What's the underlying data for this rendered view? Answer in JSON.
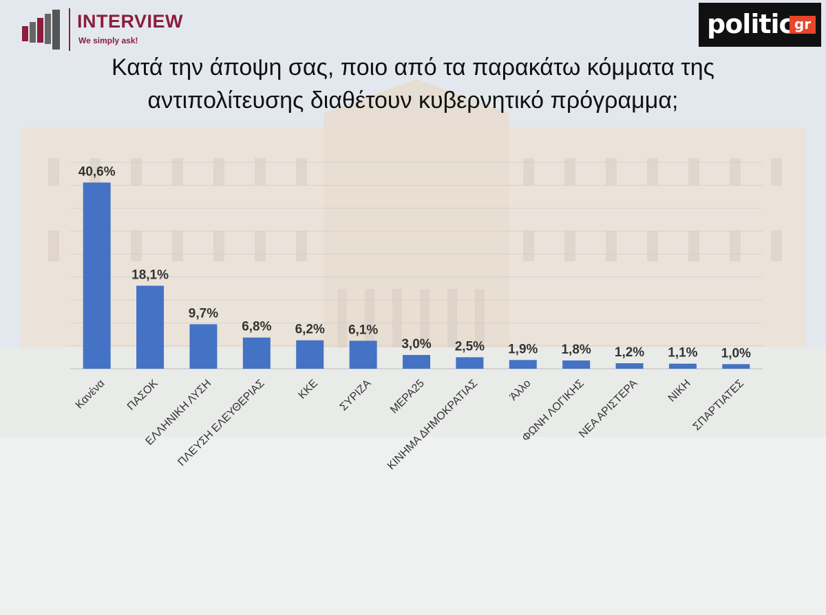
{
  "branding": {
    "left_logo": {
      "name": "INTERVIEW",
      "tagline": "We simply ask!"
    },
    "right_logo": {
      "name": "politic",
      "suffix": "gr"
    }
  },
  "title_lines": [
    "Κατά την άποψη σας, ποιο από τα παρακάτω κόμματα της",
    "αντιπολίτευσης διαθέτουν κυβερνητικό πρόγραμμα;"
  ],
  "chart_data": {
    "type": "bar",
    "title": "Κατά την άποψη σας, ποιο από τα παρακάτω κόμματα της αντιπολίτευσης διαθέτουν κυβερνητικό πρόγραμμα;",
    "categories": [
      "Κανένα",
      "ΠΑΣΟΚ",
      "ΕΛΛΗΝΙΚΗ ΛΥΣΗ",
      "ΠΛΕΥΣΗ ΕΛΕΥΘΕΡΙΑΣ",
      "ΚΚΕ",
      "ΣΥΡΙΖΑ",
      "ΜΕΡΑ25",
      "ΚΙΝΗΜΑ ΔΗΜΟΚΡΑΤΙΑΣ",
      "Άλλο",
      "ΦΩΝΗ ΛΟΓΙΚΗΣ",
      "ΝΕΑ ΑΡΙΣΤΕΡΑ",
      "ΝΙΚΗ",
      "ΣΠΑΡΤΙΑΤΕΣ"
    ],
    "values": [
      40.6,
      18.1,
      9.7,
      6.8,
      6.2,
      6.1,
      3.0,
      2.5,
      1.9,
      1.8,
      1.2,
      1.1,
      1.0
    ],
    "value_labels": [
      "40,6%",
      "18,1%",
      "9,7%",
      "6,8%",
      "6,2%",
      "6,1%",
      "3,0%",
      "2,5%",
      "1,9%",
      "1,8%",
      "1,2%",
      "1,1%",
      "1,0%"
    ],
    "xlabel": "",
    "ylabel": "",
    "ylim": [
      0,
      45
    ],
    "grid": true,
    "legend": "none",
    "bar_color": "#4472c4"
  }
}
